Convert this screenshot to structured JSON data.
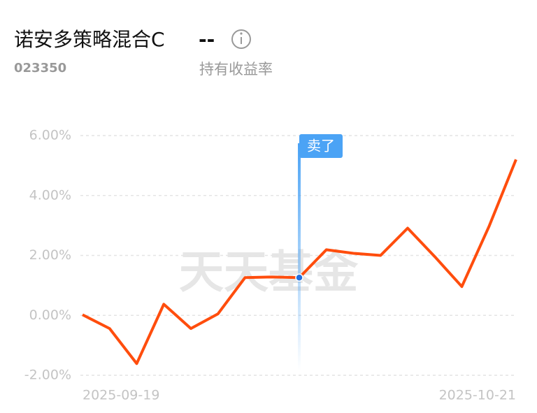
{
  "header": {
    "title": "诺安多策略混合C",
    "value": "--",
    "code": "023350",
    "metric": "持有收益率"
  },
  "watermark": "天天基金",
  "chart_data": {
    "type": "line",
    "categories": [
      "2025-09-19",
      null,
      null,
      null,
      null,
      null,
      null,
      null,
      null,
      null,
      null,
      null,
      null,
      null,
      null,
      null,
      "2025-10-21"
    ],
    "series": [
      {
        "name": "持有收益率",
        "color": "#ff4d0d",
        "values": [
          0.02,
          -0.44,
          -1.61,
          0.37,
          -0.44,
          0.05,
          1.26,
          1.28,
          1.26,
          2.19,
          2.07,
          2.0,
          2.91,
          1.96,
          0.96,
          2.96,
          5.2
        ]
      }
    ],
    "ylim": [
      -2,
      6
    ],
    "yticks": [
      {
        "value": 6,
        "label": "6.00%"
      },
      {
        "value": 4,
        "label": "4.00%"
      },
      {
        "value": 2,
        "label": "2.00%"
      },
      {
        "value": 0,
        "label": "0.00%"
      },
      {
        "value": -2,
        "label": "-2.00%"
      }
    ],
    "grid": true,
    "markers": [
      {
        "index": 8,
        "label": "卖了",
        "color": "#4ba3f5"
      }
    ]
  }
}
